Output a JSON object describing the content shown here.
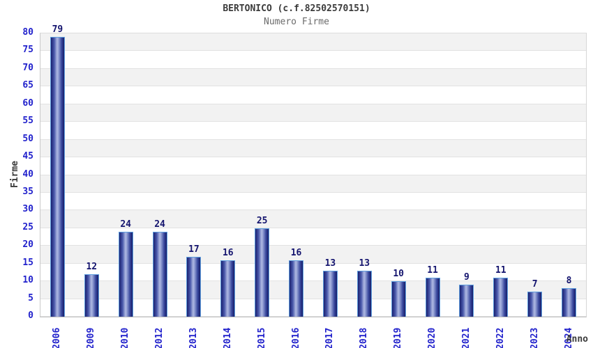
{
  "header": {
    "title": "BERTONICO (c.f.82502570151)",
    "subtitle": "Numero Firme"
  },
  "chart_data": {
    "type": "bar",
    "title": "BERTONICO (c.f.82502570151)",
    "subtitle": "Numero Firme",
    "xlabel": "Anno",
    "ylabel": "Firme",
    "categories": [
      "2006",
      "2009",
      "2010",
      "2012",
      "2013",
      "2014",
      "2015",
      "2016",
      "2017",
      "2018",
      "2019",
      "2020",
      "2021",
      "2022",
      "2023",
      "2024"
    ],
    "values": [
      79,
      12,
      24,
      24,
      17,
      16,
      25,
      16,
      13,
      13,
      10,
      11,
      9,
      11,
      7,
      8
    ],
    "ylim": [
      0,
      80
    ],
    "ytick_step": 5,
    "yticks": [
      0,
      5,
      10,
      15,
      20,
      25,
      30,
      35,
      40,
      45,
      50,
      55,
      60,
      65,
      70,
      75,
      80
    ],
    "legend": "none",
    "grid": "horizontal gridlines every 5 units with alternating gray/white bands, topmost band gray",
    "colors": {
      "tick_label_blue": "#2222cc",
      "value_label_navy": "#14146e",
      "title_text": "#3b3b3b",
      "subtitle_text": "#6b6b6b",
      "band_gray": "#f2f2f2",
      "band_white": "#ffffff",
      "gridline": "#e2e2e2",
      "axis_line": "#c0c0c0",
      "bar_border": "#5f9fdf",
      "bar_dark": "#1a2170",
      "bar_light": "#aeb8e2"
    }
  }
}
